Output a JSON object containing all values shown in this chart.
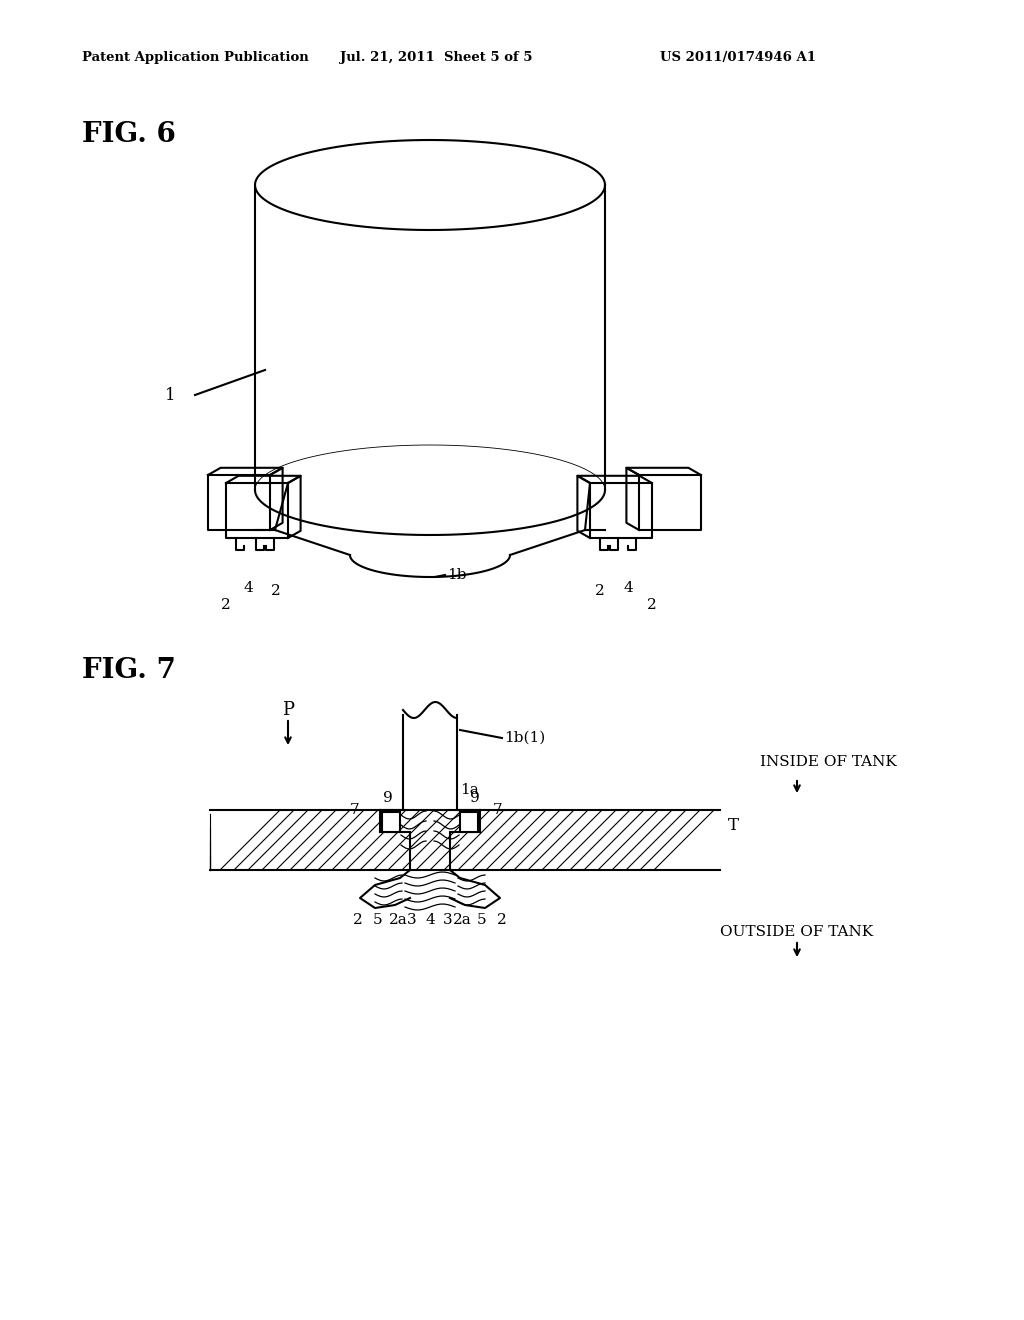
{
  "header_left": "Patent Application Publication",
  "header_mid": "Jul. 21, 2011  Sheet 5 of 5",
  "header_right": "US 2011/0174946 A1",
  "fig6_label": "FIG. 6",
  "fig7_label": "FIG. 7",
  "bg_color": "#ffffff",
  "line_color": "#000000"
}
